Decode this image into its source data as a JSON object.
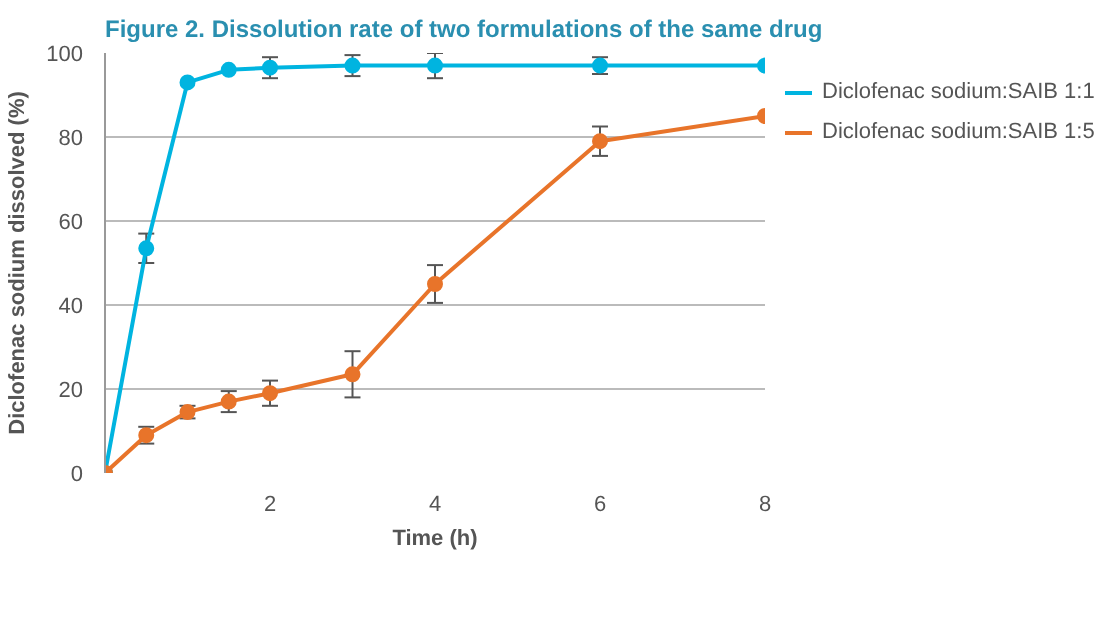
{
  "chart_data": {
    "type": "line",
    "title": "Figure 2. Dissolution rate of two formulations of the same drug",
    "xlabel": "Time (h)",
    "ylabel": "Diclofenac sodium dissolved (%)",
    "x": [
      0,
      0.5,
      1,
      1.5,
      2,
      3,
      4,
      6,
      8
    ],
    "series": [
      {
        "name": "Diclofenac sodium:SAIB 1:1",
        "color": "#00b4e0",
        "values": [
          0,
          53.5,
          93,
          96,
          96.5,
          97,
          97,
          97,
          97
        ],
        "errors": [
          null,
          3.5,
          null,
          null,
          2.5,
          2.5,
          3,
          2,
          null
        ]
      },
      {
        "name": "Diclofenac sodium:SAIB 1:5",
        "color": "#e8742a",
        "values": [
          0,
          9,
          14.5,
          17,
          19,
          23.5,
          45,
          79,
          85
        ],
        "errors": [
          null,
          2,
          1.5,
          2.5,
          3,
          5.5,
          4.5,
          3.5,
          null
        ]
      }
    ],
    "xlim": [
      0,
      8
    ],
    "xticks": [
      2,
      4,
      6,
      8
    ],
    "ylim": [
      0,
      100
    ],
    "yticks": [
      0,
      20,
      40,
      60,
      80,
      100
    ],
    "grid": "y",
    "legend": "right",
    "marker": "circle",
    "line_style": "solid"
  }
}
